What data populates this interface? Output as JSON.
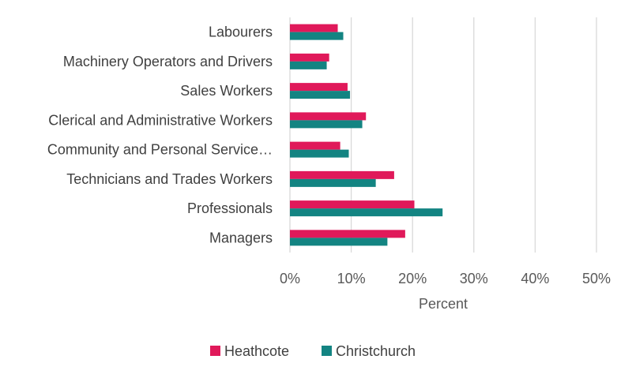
{
  "chart_data": {
    "type": "bar",
    "orientation": "horizontal",
    "categories": [
      "Labourers",
      "Machinery Operators and Drivers",
      "Sales Workers",
      "Clerical and Administrative Workers",
      "Community and Personal Service…",
      "Technicians and Trades Workers",
      "Professionals",
      "Managers"
    ],
    "series": [
      {
        "name": "Heathcote",
        "color": "#e0195a",
        "values": [
          7.8,
          6.4,
          9.4,
          12.4,
          8.2,
          17.0,
          20.3,
          18.8
        ]
      },
      {
        "name": "Christchurch",
        "color": "#138482",
        "values": [
          8.7,
          6.0,
          9.8,
          11.8,
          9.6,
          14.0,
          24.9,
          15.9
        ]
      }
    ],
    "title": "",
    "xlabel": "Percent",
    "ylabel": "",
    "xlim": [
      0,
      50
    ],
    "xticks": [
      "0%",
      "10%",
      "20%",
      "30%",
      "40%",
      "50%"
    ],
    "grid": true,
    "legend_position": "bottom"
  }
}
